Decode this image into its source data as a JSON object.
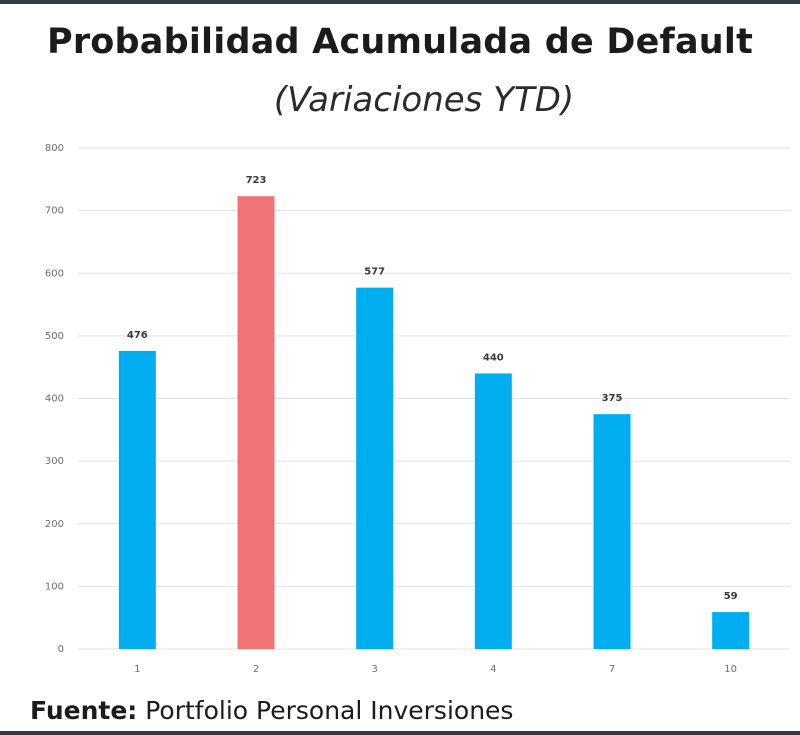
{
  "chart_data": {
    "type": "bar",
    "title": "Probabilidad Acumulada de Default",
    "subtitle": "(Variaciones YTD)",
    "categories": [
      "1",
      "2",
      "3",
      "4",
      "7",
      "10"
    ],
    "values": [
      476,
      723,
      577,
      440,
      375,
      59
    ],
    "value_labels": [
      "476",
      "723",
      "577",
      "440",
      "375",
      "59"
    ],
    "highlight_index": 1,
    "ylim": [
      0,
      800
    ],
    "yticks": [
      "0",
      "100",
      "200",
      "300",
      "400",
      "500",
      "600",
      "700",
      "800"
    ],
    "xlabel": "",
    "ylabel": "",
    "grid": true
  },
  "colors": {
    "bar": "#00aeef",
    "highlight": "#f07378",
    "grid": "#e3e3e3",
    "tick_text": "#6f6f6f"
  },
  "source": {
    "label": "Fuente:",
    "text": " Portfolio Personal Inversiones"
  }
}
